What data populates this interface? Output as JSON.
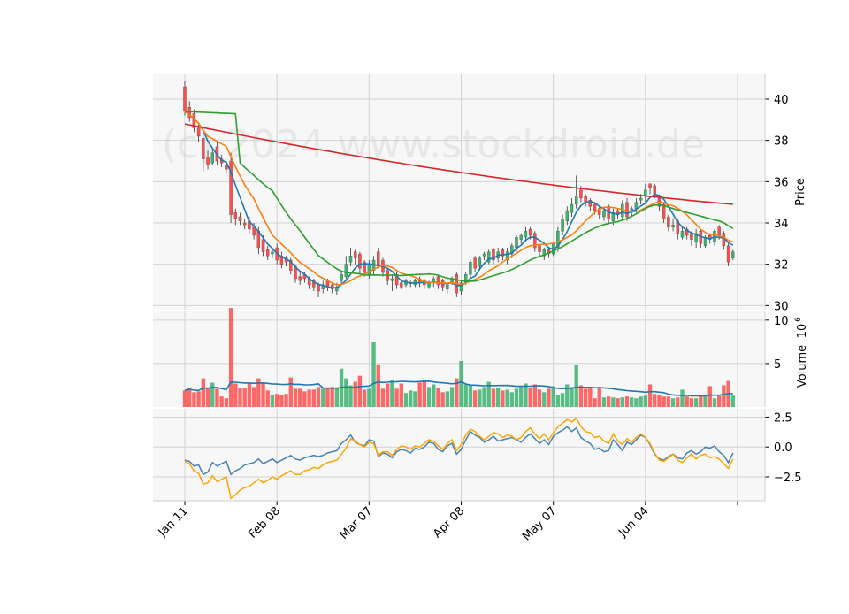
{
  "watermark": "(c) 2024 www.stockdroid.de",
  "colors": {
    "up": "#3cb371",
    "down": "#ff4d4d",
    "panel_bg": "#f7f7f7",
    "grid": "#d3d3d3",
    "ma_5": "#1f77b4",
    "ma_10": "#ff7f0e",
    "ma_20": "#2ca02c",
    "ma_200": "#d62728",
    "osc_a": "#4682b4",
    "osc_b": "#ffa500"
  },
  "chart_data": [
    {
      "panel": "price",
      "type": "candlestick",
      "ylabel": "Price",
      "ylim": [
        29.8,
        41.2
      ],
      "yticks": [
        30,
        32,
        34,
        36,
        38,
        40
      ],
      "x_tick_labels": [
        {
          "label": "Jan 11",
          "index": 0
        },
        {
          "label": "Feb 08",
          "index": 20
        },
        {
          "label": "Mar 07",
          "index": 40
        },
        {
          "label": "Apr 08",
          "index": 60
        },
        {
          "label": "May 07",
          "index": 80
        },
        {
          "label": "Jun 04",
          "index": 100
        },
        {
          "label": "",
          "index": 120
        }
      ],
      "num_bars": 120,
      "close": [
        39.4,
        39.1,
        38.6,
        38.2,
        37.1,
        36.8,
        37.4,
        37.0,
        36.9,
        36.6,
        34.4,
        34.2,
        34.1,
        33.9,
        33.7,
        33.4,
        32.8,
        32.6,
        32.4,
        32.6,
        32.2,
        32.0,
        32.1,
        31.7,
        31.3,
        31.2,
        31.3,
        31.0,
        30.9,
        30.7,
        31.0,
        30.9,
        30.8,
        30.9,
        31.5,
        32.0,
        32.4,
        32.3,
        31.8,
        31.6,
        32.0,
        32.2,
        32.0,
        31.6,
        31.2,
        31.3,
        31.0,
        30.9,
        31.2,
        31.1,
        31.2,
        31.1,
        31.0,
        31.1,
        31.3,
        31.0,
        30.9,
        31.0,
        31.3,
        30.6,
        31.1,
        31.5,
        32.1,
        31.8,
        32.3,
        32.5,
        32.6,
        32.2,
        32.6,
        32.4,
        32.6,
        32.9,
        33.3,
        33.4,
        33.6,
        33.4,
        32.8,
        32.6,
        32.7,
        32.5,
        33.0,
        33.6,
        34.2,
        34.6,
        34.9,
        35.3,
        35.2,
        35.0,
        34.8,
        34.6,
        34.4,
        34.6,
        34.2,
        34.5,
        34.4,
        34.9,
        34.3,
        34.7,
        35.0,
        35.2,
        35.6,
        35.7,
        35.4,
        34.8,
        34.2,
        33.8,
        33.9,
        33.5,
        33.6,
        33.4,
        33.2,
        33.5,
        33.0,
        33.3,
        33.2,
        33.6,
        33.4,
        32.9,
        32.1,
        32.6
      ],
      "open": [
        40.6,
        39.6,
        39.3,
        38.6,
        38.1,
        37.2,
        36.9,
        37.7,
        37.1,
        36.8,
        37.0,
        34.5,
        34.3,
        34.0,
        34.1,
        33.8,
        33.6,
        33.2,
        32.7,
        32.5,
        32.8,
        32.4,
        32.3,
        32.2,
        31.9,
        31.4,
        31.5,
        31.3,
        31.2,
        31.0,
        30.8,
        31.2,
        31.0,
        30.7,
        31.2,
        31.4,
        32.1,
        32.6,
        32.5,
        32.1,
        31.5,
        31.7,
        32.6,
        32.2,
        31.7,
        31.2,
        31.5,
        31.1,
        31.0,
        31.1,
        31.0,
        31.3,
        31.2,
        30.9,
        31.1,
        31.4,
        31.2,
        30.8,
        31.1,
        31.5,
        30.7,
        31.1,
        31.5,
        32.3,
        31.9,
        32.4,
        32.1,
        32.7,
        32.3,
        32.7,
        32.2,
        32.5,
        32.8,
        33.2,
        33.3,
        33.7,
        33.5,
        32.9,
        32.4,
        32.7,
        32.5,
        32.8,
        33.6,
        34.1,
        34.5,
        34.9,
        35.6,
        35.3,
        35.1,
        34.9,
        34.7,
        34.3,
        34.8,
        34.1,
        34.6,
        34.3,
        35.0,
        34.5,
        34.7,
        35.1,
        35.3,
        35.9,
        35.8,
        35.2,
        34.9,
        34.3,
        33.8,
        34.1,
        33.3,
        33.7,
        33.5,
        33.1,
        33.6,
        32.9,
        33.4,
        33.1,
        33.8,
        33.5,
        32.9,
        32.3
      ],
      "high": [
        40.9,
        39.9,
        39.5,
        38.8,
        38.3,
        37.5,
        37.6,
        37.9,
        37.3,
        37.0,
        37.4,
        34.7,
        34.5,
        34.2,
        34.3,
        34.0,
        33.8,
        33.4,
        32.9,
        32.8,
        33.0,
        32.6,
        32.4,
        32.3,
        32.0,
        31.6,
        31.6,
        31.4,
        31.3,
        31.1,
        31.2,
        31.3,
        31.1,
        31.1,
        31.7,
        32.4,
        32.8,
        32.7,
        32.6,
        32.2,
        32.2,
        32.4,
        32.8,
        32.3,
        31.8,
        31.5,
        31.6,
        31.2,
        31.3,
        31.2,
        31.3,
        31.4,
        31.3,
        31.2,
        31.4,
        31.5,
        31.3,
        31.1,
        31.4,
        31.6,
        31.2,
        31.6,
        32.2,
        32.4,
        32.4,
        32.6,
        32.7,
        32.8,
        32.8,
        32.8,
        32.8,
        33.0,
        33.4,
        33.5,
        33.8,
        33.8,
        33.6,
        33.0,
        32.8,
        32.8,
        33.1,
        33.8,
        34.4,
        34.8,
        35.2,
        36.3,
        35.8,
        35.4,
        35.2,
        35.0,
        34.8,
        34.8,
        34.9,
        34.7,
        34.7,
        35.1,
        35.2,
        34.8,
        35.2,
        35.4,
        35.9,
        35.9,
        35.9,
        35.3,
        35.0,
        34.4,
        34.2,
        34.2,
        33.8,
        33.8,
        33.6,
        33.7,
        33.7,
        33.4,
        33.5,
        33.7,
        33.9,
        33.6,
        33.0,
        32.7
      ],
      "low": [
        39.2,
        38.9,
        38.4,
        37.9,
        36.5,
        36.6,
        36.8,
        36.8,
        36.7,
        36.4,
        34.0,
        33.9,
        33.9,
        33.7,
        33.5,
        33.2,
        32.5,
        32.4,
        32.2,
        32.3,
        32.0,
        31.8,
        31.9,
        31.5,
        31.1,
        31.0,
        31.1,
        30.8,
        30.7,
        30.4,
        30.6,
        30.7,
        30.6,
        30.5,
        31.0,
        31.3,
        31.9,
        32.0,
        31.5,
        31.4,
        31.3,
        31.5,
        31.8,
        31.4,
        31.0,
        30.7,
        30.8,
        30.8,
        30.9,
        30.9,
        30.9,
        30.9,
        30.8,
        30.8,
        30.9,
        30.8,
        30.7,
        30.6,
        31.0,
        30.4,
        30.5,
        31.0,
        31.3,
        31.6,
        31.7,
        32.2,
        32.0,
        32.0,
        32.1,
        32.2,
        32.0,
        32.3,
        32.6,
        33.0,
        33.1,
        33.2,
        32.6,
        32.4,
        32.2,
        32.3,
        32.4,
        32.6,
        33.4,
        33.9,
        34.3,
        34.7,
        35.0,
        34.8,
        34.6,
        34.4,
        34.2,
        34.1,
        34.0,
        33.9,
        34.2,
        34.1,
        34.1,
        34.3,
        34.5,
        34.9,
        35.0,
        35.4,
        35.2,
        34.6,
        34.0,
        33.6,
        33.6,
        33.2,
        33.2,
        33.2,
        32.9,
        32.8,
        32.8,
        32.8,
        33.0,
        32.9,
        33.2,
        32.7,
        31.9,
        32.2
      ],
      "overlays": [
        {
          "name": "",
          "period": 5,
          "color": "#1f77b4"
        },
        {
          "name": "",
          "period": 10,
          "color": "#ff7f0e"
        },
        {
          "name": "",
          "period": 20,
          "color": "#2ca02c"
        },
        {
          "name": "",
          "kind": "long-trend",
          "start": 38.8,
          "end": 34.9,
          "color": "#d62728"
        }
      ]
    },
    {
      "panel": "volume",
      "type": "bar",
      "ylabel": "Volume",
      "ylabel_exponent": "10",
      "ylabel_exponent_power": "6",
      "ylim": [
        0,
        11
      ],
      "yticks": [
        5,
        10
      ],
      "volume_millions": [
        1.9,
        2.2,
        1.7,
        1.8,
        3.3,
        2.1,
        2.8,
        2.1,
        1.2,
        1.0,
        11.4,
        2.7,
        2.2,
        2.2,
        2.8,
        2.3,
        3.3,
        2.8,
        1.9,
        1.4,
        1.5,
        1.4,
        1.5,
        3.4,
        2.1,
        2.1,
        1.8,
        2.0,
        2.0,
        2.3,
        2.1,
        2.2,
        2.3,
        2.2,
        4.4,
        3.3,
        2.5,
        2.9,
        3.6,
        2.0,
        2.1,
        7.5,
        4.9,
        2.1,
        2.7,
        3.1,
        2.1,
        2.7,
        1.6,
        1.9,
        1.8,
        2.8,
        3.1,
        2.3,
        2.6,
        2.2,
        1.7,
        1.8,
        2.3,
        3.3,
        5.3,
        2.6,
        2.5,
        1.9,
        2.0,
        2.3,
        2.9,
        2.1,
        2.2,
        1.9,
        2.0,
        1.7,
        2.1,
        2.3,
        2.7,
        2.2,
        2.6,
        2.0,
        1.7,
        2.1,
        2.4,
        1.4,
        1.6,
        2.6,
        2.3,
        4.8,
        2.5,
        2.1,
        2.2,
        1.0,
        2.3,
        1.1,
        1.2,
        1.1,
        1.0,
        1.1,
        1.2,
        1.1,
        1.0,
        1.2,
        1.3,
        2.6,
        1.5,
        1.4,
        1.2,
        1.2,
        1.0,
        1.1,
        2.0,
        1.2,
        1.0,
        1.0,
        1.3,
        1.4,
        2.4,
        1.0,
        1.3,
        2.5,
        3.0,
        1.3
      ],
      "volume_average": "moving average line"
    },
    {
      "panel": "oscillator",
      "type": "line",
      "ylim": [
        -4.5,
        3.2
      ],
      "yticks": [
        -2.5,
        0.0,
        2.5
      ],
      "ytick_labels": [
        "−2.5",
        "0.0",
        "2.5"
      ],
      "series": [
        {
          "name": "",
          "color": "#4682b4",
          "values": [
            -1.1,
            -1.2,
            -1.6,
            -1.5,
            -2.3,
            -2.1,
            -1.3,
            -1.6,
            -1.4,
            -1.2,
            -2.3,
            -2.0,
            -1.8,
            -1.5,
            -1.4,
            -1.3,
            -1.0,
            -1.4,
            -1.2,
            -1.0,
            -1.3,
            -1.1,
            -0.9,
            -0.7,
            -1.0,
            -1.1,
            -0.9,
            -0.8,
            -0.7,
            -0.8,
            -0.7,
            -0.5,
            -0.4,
            -0.3,
            0.3,
            0.6,
            1.0,
            0.4,
            0.2,
            0.1,
            0.6,
            0.5,
            -0.8,
            -0.5,
            -0.6,
            -0.9,
            -0.4,
            -0.2,
            -0.3,
            -0.5,
            -0.1,
            -0.2,
            0.0,
            0.4,
            0.3,
            -0.2,
            -0.4,
            0.1,
            0.3,
            -0.6,
            -0.2,
            0.6,
            1.3,
            1.0,
            0.8,
            0.4,
            0.6,
            0.9,
            0.5,
            0.6,
            0.7,
            0.8,
            0.6,
            0.4,
            0.8,
            1.1,
            0.7,
            0.3,
            0.6,
            0.2,
            0.9,
            1.2,
            1.4,
            1.7,
            1.3,
            1.6,
            0.8,
            0.5,
            0.3,
            -0.2,
            -0.1,
            -0.4,
            -0.3,
            0.6,
            0.2,
            -0.3,
            0.4,
            0.2,
            0.6,
            1.0,
            0.8,
            0.2,
            -0.6,
            -1.0,
            -1.1,
            -0.8,
            -0.6,
            -0.9,
            -1.0,
            -0.5,
            -0.3,
            -0.6,
            -0.4,
            0.0,
            -0.1,
            0.1,
            -0.4,
            -0.7,
            -1.3,
            -0.5
          ]
        },
        {
          "name": "",
          "color": "#ffa500",
          "values": [
            -1.2,
            -1.4,
            -2.0,
            -2.2,
            -3.1,
            -3.0,
            -2.4,
            -2.9,
            -2.7,
            -2.5,
            -4.3,
            -4.0,
            -3.6,
            -3.4,
            -3.3,
            -3.0,
            -2.7,
            -3.0,
            -2.8,
            -2.5,
            -2.7,
            -2.4,
            -2.2,
            -2.0,
            -2.3,
            -2.3,
            -2.0,
            -1.9,
            -1.7,
            -1.8,
            -1.5,
            -1.3,
            -1.2,
            -1.1,
            -0.6,
            -0.1,
            0.7,
            0.5,
            0.2,
            0.0,
            0.4,
            0.3,
            -0.7,
            -0.4,
            -0.4,
            -0.7,
            -0.2,
            0.1,
            0.0,
            -0.2,
            0.1,
            0.0,
            0.3,
            0.6,
            0.5,
            0.1,
            -0.2,
            0.3,
            0.6,
            -0.3,
            0.2,
            1.0,
            1.5,
            1.3,
            0.9,
            0.6,
            0.9,
            1.2,
            1.1,
            0.8,
            1.0,
            0.9,
            0.6,
            0.8,
            1.3,
            1.6,
            1.1,
            0.7,
            1.1,
            0.6,
            1.2,
            1.7,
            2.0,
            2.3,
            2.1,
            2.4,
            1.7,
            1.3,
            1.2,
            0.8,
            0.9,
            0.5,
            0.3,
            1.1,
            0.5,
            0.2,
            0.7,
            0.4,
            0.8,
            1.1,
            0.8,
            0.3,
            -0.5,
            -1.1,
            -1.2,
            -0.9,
            -0.6,
            -1.1,
            -1.3,
            -0.9,
            -0.6,
            -1.0,
            -0.7,
            -0.6,
            -0.9,
            -0.8,
            -1.0,
            -1.4,
            -1.8,
            -1.0
          ]
        }
      ]
    }
  ]
}
